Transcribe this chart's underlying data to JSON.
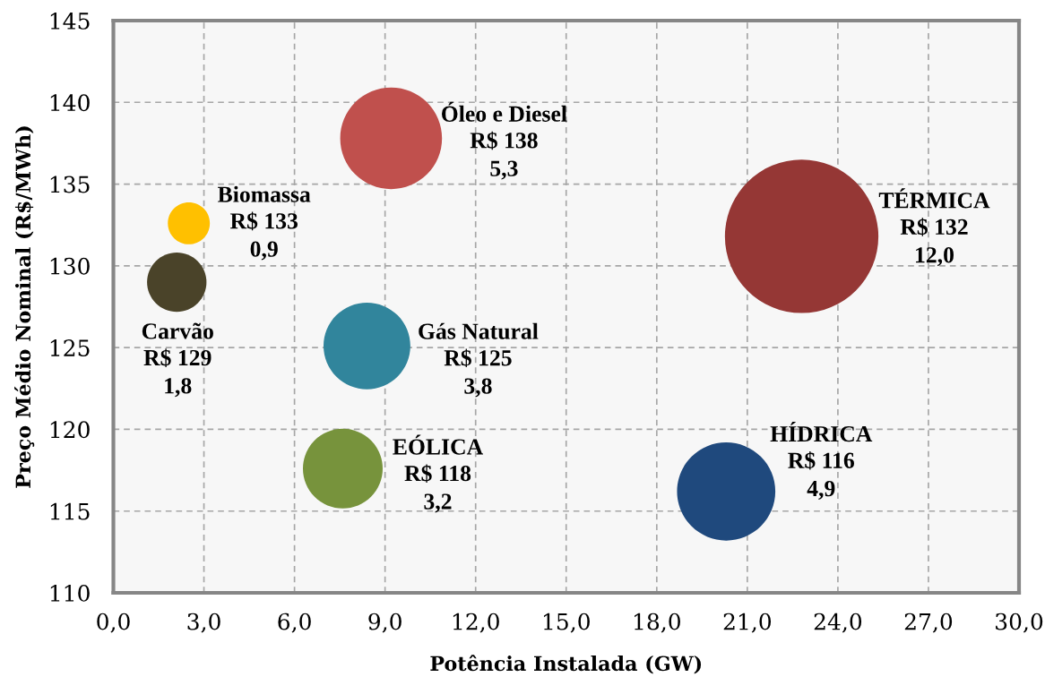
{
  "chart_data": {
    "type": "bubble",
    "xlabel": "Potência Instalada (GW)",
    "ylabel": "Preço Médio Nominal (R$/MWh)",
    "xlim": [
      0,
      30
    ],
    "ylim": [
      110,
      145
    ],
    "xticks": [
      {
        "value": 0,
        "label": "0,0"
      },
      {
        "value": 3,
        "label": "3,0"
      },
      {
        "value": 6,
        "label": "6,0"
      },
      {
        "value": 9,
        "label": "9,0"
      },
      {
        "value": 12,
        "label": "12,0"
      },
      {
        "value": 15,
        "label": "15,0"
      },
      {
        "value": 18,
        "label": "18,0"
      },
      {
        "value": 21,
        "label": "21,0"
      },
      {
        "value": 24,
        "label": "24,0"
      },
      {
        "value": 27,
        "label": "27,0"
      },
      {
        "value": 30,
        "label": "30,0"
      }
    ],
    "yticks": [
      110,
      115,
      120,
      125,
      130,
      135,
      140,
      145
    ],
    "grid": true,
    "series": [
      {
        "name": "Biomassa",
        "color": "#ffc000",
        "x": [
          2.5
        ],
        "values": [
          132.6
        ],
        "sizes": [
          0.075
        ],
        "value_labels": [
          "R$ 133\n0,9"
        ]
      },
      {
        "name": "Carvão",
        "color": "#4a4329",
        "x": [
          2.1
        ],
        "values": [
          129.0
        ],
        "sizes": [
          0.15
        ],
        "value_labels": [
          "R$ 129\n1,8"
        ]
      },
      {
        "name": "Óleo e Diesel",
        "color": "#c0504d",
        "x": [
          9.2
        ],
        "values": [
          137.8
        ],
        "sizes": [
          0.44
        ],
        "value_labels": [
          "R$ 138\n5,3"
        ]
      },
      {
        "name": "Gás Natural",
        "color": "#31859c",
        "x": [
          8.4
        ],
        "values": [
          125.1
        ],
        "sizes": [
          0.32
        ],
        "value_labels": [
          "R$ 125\n3,8"
        ]
      },
      {
        "name": "EÓLICA",
        "color": "#77933c",
        "x": [
          7.6
        ],
        "values": [
          117.6
        ],
        "sizes": [
          0.27
        ],
        "value_labels": [
          "R$ 118\n3,2"
        ]
      },
      {
        "name": "HÍDRICA",
        "color": "#1f497d",
        "x": [
          20.3
        ],
        "values": [
          116.2
        ],
        "sizes": [
          0.41
        ],
        "value_labels": [
          "R$ 116\n4,9"
        ]
      },
      {
        "name": "TÉRMICA",
        "color": "#953735",
        "x": [
          22.8
        ],
        "values": [
          131.8
        ],
        "sizes": [
          1
        ],
        "value_labels": [
          "R$ 132\n12,0"
        ]
      }
    ]
  }
}
